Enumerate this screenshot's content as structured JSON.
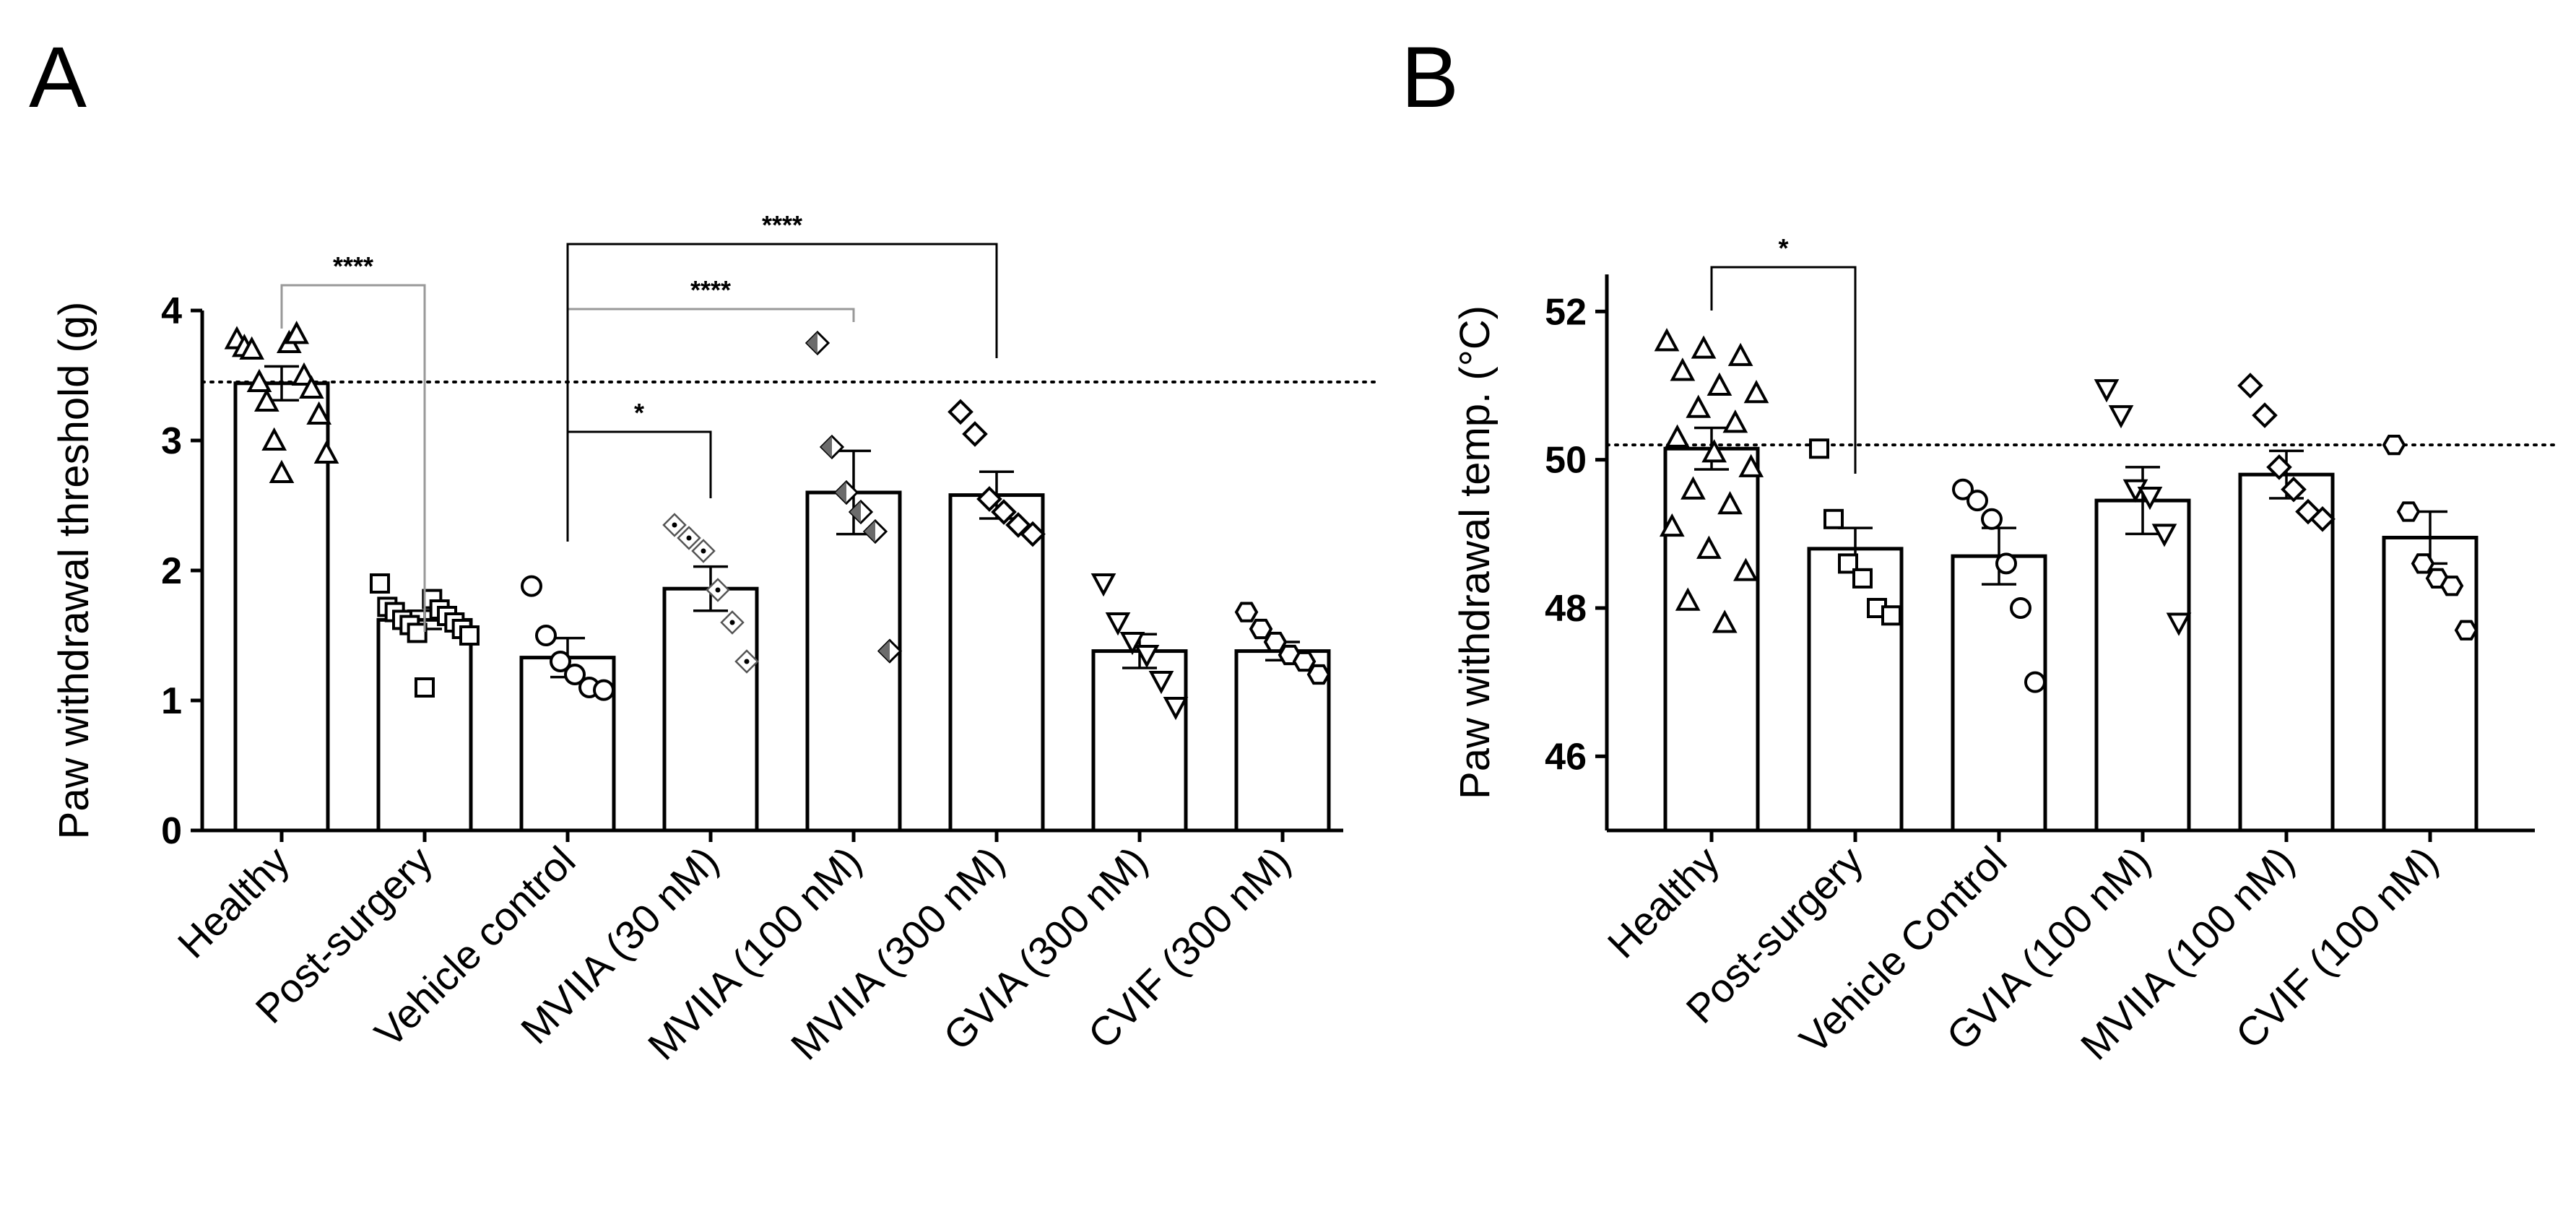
{
  "chart_data": [
    {
      "panel": "A",
      "type": "bar",
      "title": "",
      "xlabel": "",
      "ylabel": "Paw withdrawal threshold (g)",
      "ylim": [
        0,
        4
      ],
      "yticks": [
        "0",
        "1",
        "2",
        "3",
        "4"
      ],
      "reference_line": 3.45,
      "categories": [
        "Healthy",
        "Post-surgery",
        "Vehicle control",
        "MVIIA (30 nM)",
        "MVIIA (100 nM)",
        "MVIIA (300 nM)",
        "GVIA (300 nM)",
        "CVIF (300 nM)"
      ],
      "markers": [
        "triangle-up",
        "square",
        "circle",
        "diamond-dot",
        "diamond-half",
        "diamond",
        "triangle-down",
        "hexagon"
      ],
      "values": [
        3.44,
        1.62,
        1.33,
        1.86,
        2.6,
        2.58,
        1.38,
        1.38
      ],
      "sem": [
        0.13,
        0.07,
        0.15,
        0.17,
        0.32,
        0.18,
        0.13,
        0.07
      ],
      "points": [
        [
          3.78,
          3.75,
          3.72,
          3.82,
          3.7,
          3.5,
          3.45,
          3.4,
          3.3,
          3.2,
          3.0,
          2.9,
          2.75
        ],
        [
          1.9,
          1.78,
          1.72,
          1.7,
          1.68,
          1.65,
          1.62,
          1.6,
          1.58,
          1.55,
          1.52,
          1.5,
          1.1
        ],
        [
          1.88,
          1.5,
          1.3,
          1.2,
          1.1,
          1.08
        ],
        [
          2.35,
          2.25,
          2.15,
          1.85,
          1.6,
          1.3
        ],
        [
          3.75,
          2.95,
          2.6,
          2.45,
          2.3,
          1.38
        ],
        [
          3.22,
          3.05,
          2.55,
          2.45,
          2.35,
          2.28
        ],
        [
          1.9,
          1.6,
          1.45,
          1.35,
          1.15,
          0.95
        ],
        [
          1.68,
          1.55,
          1.45,
          1.35,
          1.3,
          1.2
        ]
      ],
      "comparisons": [
        {
          "from": 0,
          "to": 1,
          "label": "****"
        },
        {
          "from": 2,
          "to": 3,
          "label": "*"
        },
        {
          "from": 2,
          "to": 4,
          "label": "****"
        },
        {
          "from": 2,
          "to": 5,
          "label": "****"
        }
      ]
    },
    {
      "panel": "B",
      "type": "bar",
      "title": "",
      "xlabel": "",
      "ylabel": "Paw withdrawal temp. (°C)",
      "ylim": [
        45,
        52.5
      ],
      "yticks": [
        "46",
        "48",
        "50",
        "52"
      ],
      "reference_line": 50.2,
      "categories": [
        "Healthy",
        "Post-surgery",
        "Vehicle Control",
        "GVIA (100 nM)",
        "MVIIA (100 nM)",
        "CVIF (100 nM)"
      ],
      "markers": [
        "triangle-up",
        "square",
        "circle",
        "triangle-down",
        "diamond",
        "hexagon"
      ],
      "values": [
        50.15,
        48.8,
        48.7,
        49.45,
        49.8,
        48.95
      ],
      "sem": [
        0.28,
        0.28,
        0.38,
        0.45,
        0.32,
        0.35
      ],
      "points": [
        [
          51.6,
          51.5,
          51.4,
          51.2,
          51.0,
          50.9,
          50.7,
          50.5,
          50.3,
          50.1,
          49.9,
          49.6,
          49.4,
          49.1,
          48.8,
          48.5,
          48.1,
          47.8
        ],
        [
          50.15,
          49.2,
          48.6,
          48.4,
          48.0,
          47.9
        ],
        [
          49.6,
          49.45,
          49.2,
          48.6,
          48.0,
          47.0
        ],
        [
          50.95,
          50.6,
          49.6,
          49.5,
          49.0,
          47.8
        ],
        [
          51.0,
          50.6,
          49.9,
          49.6,
          49.3,
          49.2
        ],
        [
          50.2,
          49.3,
          48.6,
          48.4,
          48.3,
          47.7
        ]
      ],
      "comparisons": [
        {
          "from": 0,
          "to": 1,
          "label": "*"
        }
      ]
    }
  ]
}
